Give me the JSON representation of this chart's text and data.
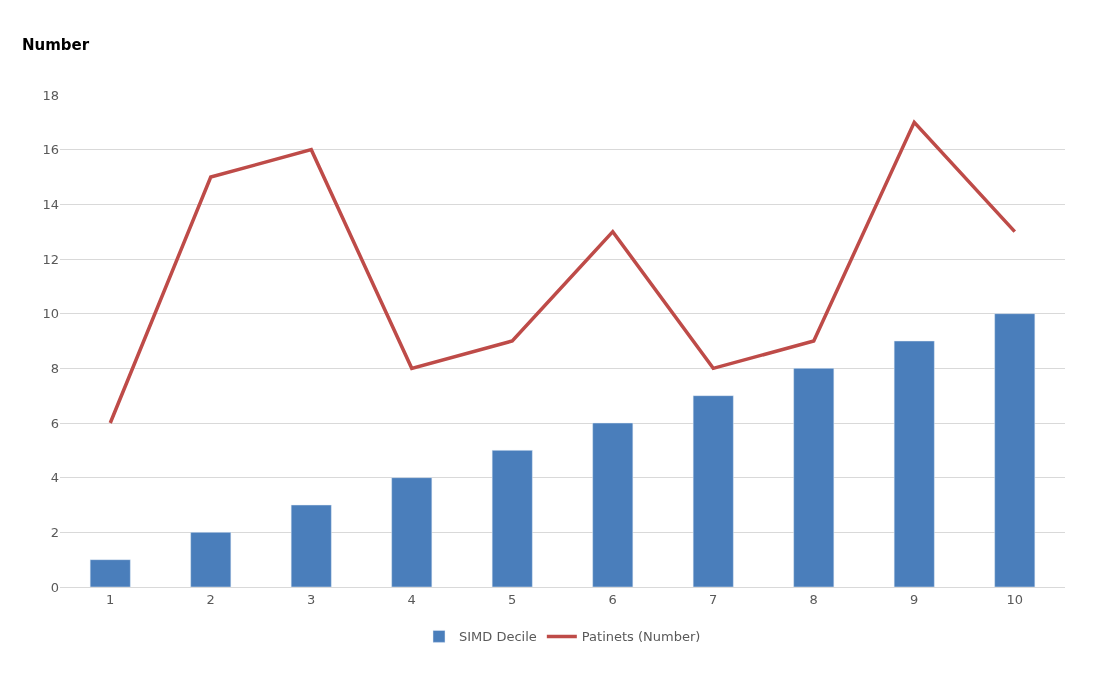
{
  "chart_data": {
    "type": "bar",
    "ylabel": "Number",
    "categories": [
      "1",
      "2",
      "3",
      "4",
      "5",
      "6",
      "7",
      "8",
      "9",
      "10"
    ],
    "series": [
      {
        "name": "SIMD Decile",
        "color": "#4a7ebb",
        "values": [
          1,
          2,
          3,
          4,
          5,
          6,
          7,
          8,
          9,
          10
        ]
      },
      {
        "name": "Patinets (Number)",
        "type": "line",
        "color": "#be4b48",
        "values": [
          6,
          15,
          16,
          8,
          9,
          13,
          8,
          9,
          17,
          13
        ]
      }
    ],
    "ylim": [
      0,
      18
    ],
    "yticks": [
      0,
      2,
      4,
      6,
      8,
      10,
      12,
      14,
      16,
      18
    ],
    "grid": "y",
    "legend": "bottom"
  }
}
